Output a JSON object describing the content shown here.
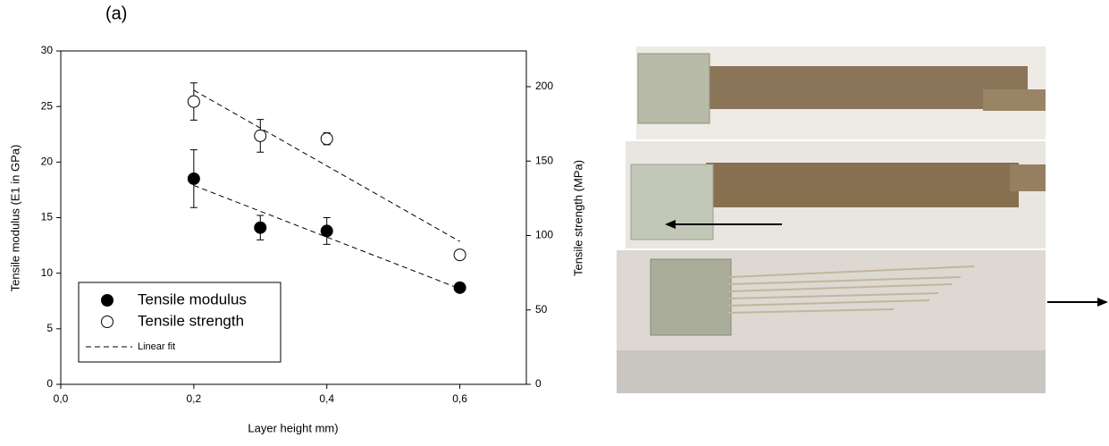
{
  "panel_label": "(a)",
  "chart_data": {
    "type": "scatter",
    "x_label": "Layer height mm)",
    "y_label": "Tensile modulus (E1 in GPa)",
    "y2_label": "Tensile strength (MPa)",
    "xlim": [
      0,
      0.7
    ],
    "xticks": [
      {
        "value": 0,
        "label": "0,0"
      },
      {
        "value": 0.2,
        "label": "0,2"
      },
      {
        "value": 0.4,
        "label": "0,4"
      },
      {
        "value": 0.6,
        "label": "0,6"
      }
    ],
    "ylim": [
      0,
      30
    ],
    "yticks": [
      0,
      5,
      10,
      15,
      20,
      25,
      30
    ],
    "y2lim": [
      0,
      224
    ],
    "y2ticks": [
      0,
      50,
      100,
      150,
      200
    ],
    "series": [
      {
        "name": "Tensile modulus",
        "axis": "y",
        "color": "#000000",
        "filled": true,
        "x": [
          0.2,
          0.3,
          0.4,
          0.6
        ],
        "values": [
          18.5,
          14.1,
          13.8,
          8.7
        ],
        "errors": [
          2.6,
          1.1,
          1.2,
          0
        ]
      },
      {
        "name": "Tensile strength",
        "axis": "y2",
        "color": "#000000",
        "filled": false,
        "x": [
          0.2,
          0.3,
          0.4,
          0.6
        ],
        "values": [
          190,
          167,
          165,
          87
        ],
        "errors": [
          12.5,
          11,
          4,
          0
        ]
      }
    ],
    "fit": {
      "name": "Linear fit",
      "x": [
        0.2,
        0.6
      ],
      "lines": [
        {
          "axis": "y",
          "values": [
            17.9,
            8.6
          ]
        },
        {
          "axis": "y2",
          "values": [
            197.6,
            96
          ]
        }
      ]
    }
  }
}
